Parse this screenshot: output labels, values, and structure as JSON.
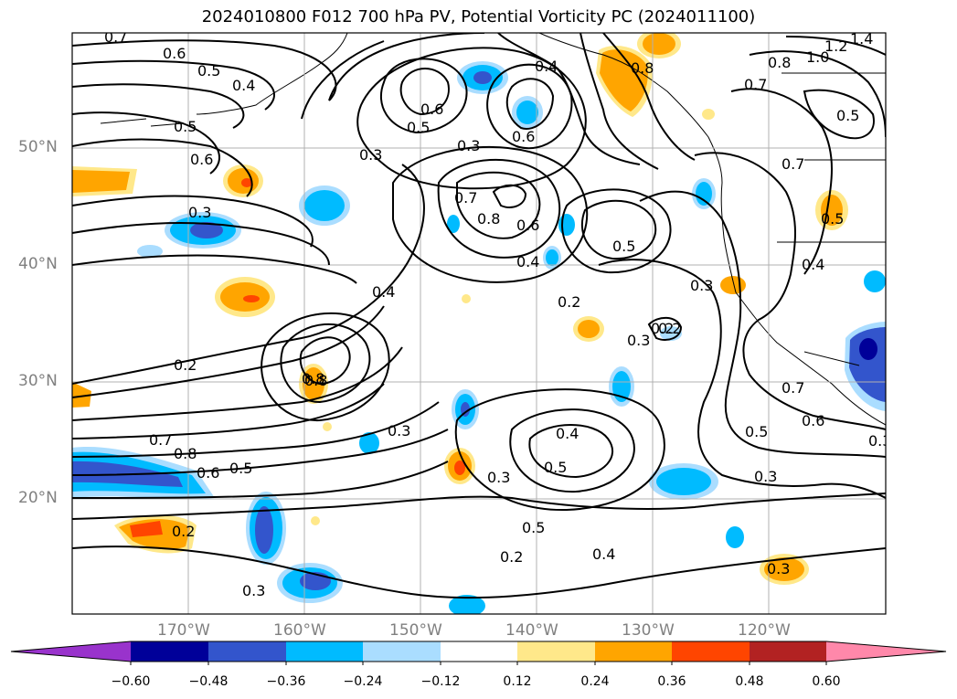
{
  "title": "2024010800 F012 700 hPa PV, Potential Vorticity PC (2024011100)",
  "lat_labels": [
    "50°N",
    "40°N",
    "30°N",
    "20°N"
  ],
  "lon_labels": [
    "170°W",
    "160°W",
    "150°W",
    "140°W",
    "130°W",
    "120°W"
  ],
  "colorbar": {
    "colors": [
      "#9933cc",
      "#000099",
      "#3355cc",
      "#00bbff",
      "#aaddff",
      "#ffffff",
      "#ffe88a",
      "#ffa500",
      "#ff4500",
      "#b22222",
      "#ff88aa"
    ],
    "tick_labels": [
      "−0.60",
      "−0.48",
      "−0.36",
      "−0.24",
      "−0.12",
      "0.12",
      "0.24",
      "0.36",
      "0.48",
      "0.60"
    ]
  },
  "contour_labels": [
    "0.7",
    "0.6",
    "0.5",
    "0.4",
    "0.5",
    "0.6",
    "0.3",
    "0.3",
    "0.2",
    "0.8",
    "0.6",
    "0.5",
    "0.3",
    "0.6",
    "0.7",
    "0.8",
    "0.6",
    "0.4",
    "0.5",
    "0.4",
    "0.2",
    "0.2",
    "0.3",
    "0.3",
    "0.8",
    "0.2",
    "0.7",
    "0.8",
    "0.6",
    "0.5",
    "0.3",
    "0.4",
    "0.5",
    "0.3",
    "0.2",
    "0.3",
    "0.5",
    "0.4",
    "0.2",
    "0.3",
    "0.7",
    "0.6",
    "0.5",
    "0.3",
    "0.3",
    "0.8",
    "0.4",
    "0.7",
    "0.8",
    "1.0",
    "1.2",
    "1.4",
    "0.5",
    "0.7",
    "0.5",
    "0.4"
  ]
}
